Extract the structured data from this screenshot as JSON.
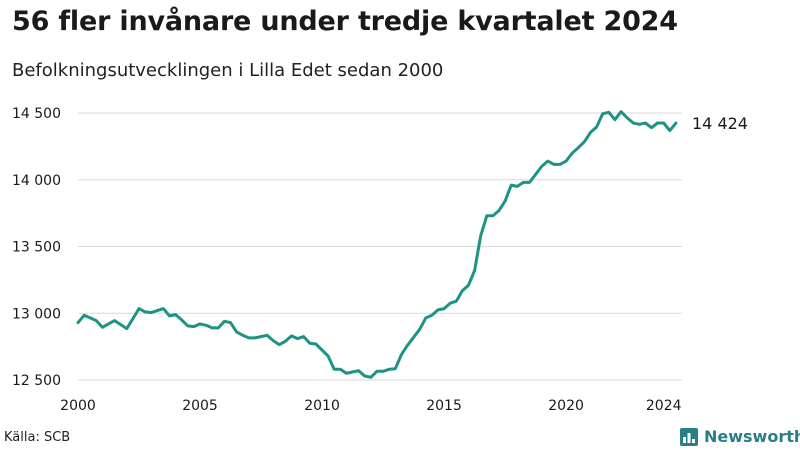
{
  "title": "56 fler invånare under tredje kvartalet 2024",
  "subtitle": "Befolkningsutvecklingen i Lilla Edet sedan 2000",
  "source": "Källa: SCB",
  "brand": {
    "name": "Newsworthy",
    "logo_icon": "bar-chart-logo-icon",
    "color": "#2a7f86"
  },
  "colors": {
    "line": "#1f9383",
    "grid": "#d9d9d9",
    "text": "#1a1a1a"
  },
  "chart_data": {
    "type": "line",
    "title": "56 fler invånare under tredje kvartalet 2024",
    "subtitle": "Befolkningsutvecklingen i Lilla Edet sedan 2000",
    "xlim": [
      2000,
      2024.75
    ],
    "ylim": [
      12500,
      14600
    ],
    "x_ticks": [
      2000,
      2005,
      2010,
      2015,
      2020,
      2024
    ],
    "x_tick_labels": [
      "2000",
      "2005",
      "2010",
      "2015",
      "2020",
      "2024"
    ],
    "y_ticks": [
      12500,
      13000,
      13500,
      14000,
      14500
    ],
    "y_tick_labels": [
      "12 500",
      "13 000",
      "13 500",
      "14 000",
      "14 500"
    ],
    "grid": "horizontal",
    "end_label": "14 424",
    "series": [
      {
        "x": [
          2000.0,
          2000.25,
          2000.5,
          2000.75,
          2001.0,
          2001.25,
          2001.5,
          2001.75,
          2002.0,
          2002.25,
          2002.5,
          2002.75,
          2003.0,
          2003.25,
          2003.5,
          2003.75,
          2004.0,
          2004.25,
          2004.5,
          2004.75,
          2005.0,
          2005.25,
          2005.5,
          2005.75,
          2006.0,
          2006.25,
          2006.5,
          2006.75,
          2007.0,
          2007.25,
          2007.5,
          2007.75,
          2008.0,
          2008.25,
          2008.5,
          2008.75,
          2009.0,
          2009.25,
          2009.5,
          2009.75,
          2010.0,
          2010.25,
          2010.5,
          2010.75,
          2011.0,
          2011.25,
          2011.5,
          2011.75,
          2012.0,
          2012.25,
          2012.5,
          2012.75,
          2013.0,
          2013.25,
          2013.5,
          2013.75,
          2014.0,
          2014.25,
          2014.5,
          2014.75,
          2015.0,
          2015.25,
          2015.5,
          2015.75,
          2016.0,
          2016.25,
          2016.5,
          2016.75,
          2017.0,
          2017.25,
          2017.5,
          2017.75,
          2018.0,
          2018.25,
          2018.5,
          2018.75,
          2019.0,
          2019.25,
          2019.5,
          2019.75,
          2020.0,
          2020.25,
          2020.5,
          2020.75,
          2021.0,
          2021.25,
          2021.5,
          2021.75,
          2022.0,
          2022.25,
          2022.5,
          2022.75,
          2023.0,
          2023.25,
          2023.5,
          2023.75,
          2024.0,
          2024.25,
          2024.5
        ],
        "y": [
          12930,
          12985,
          12965,
          12945,
          12895,
          12920,
          12945,
          12915,
          12885,
          12960,
          13035,
          13010,
          13005,
          13020,
          13035,
          12980,
          12990,
          12950,
          12905,
          12900,
          12920,
          12910,
          12890,
          12890,
          12940,
          12930,
          12860,
          12835,
          12815,
          12815,
          12825,
          12835,
          12795,
          12765,
          12790,
          12830,
          12810,
          12825,
          12775,
          12770,
          12725,
          12680,
          12580,
          12580,
          12550,
          12560,
          12570,
          12530,
          12520,
          12565,
          12565,
          12580,
          12585,
          12690,
          12760,
          12820,
          12880,
          12965,
          12985,
          13025,
          13035,
          13075,
          13090,
          13170,
          13210,
          13320,
          13580,
          13730,
          13730,
          13770,
          13840,
          13960,
          13950,
          13980,
          13980,
          14040,
          14100,
          14140,
          14115,
          14115,
          14140,
          14200,
          14240,
          14285,
          14355,
          14395,
          14495,
          14505,
          14450,
          14510,
          14465,
          14425,
          14415,
          14425,
          14390,
          14425,
          14425,
          14368,
          14424
        ]
      }
    ]
  }
}
